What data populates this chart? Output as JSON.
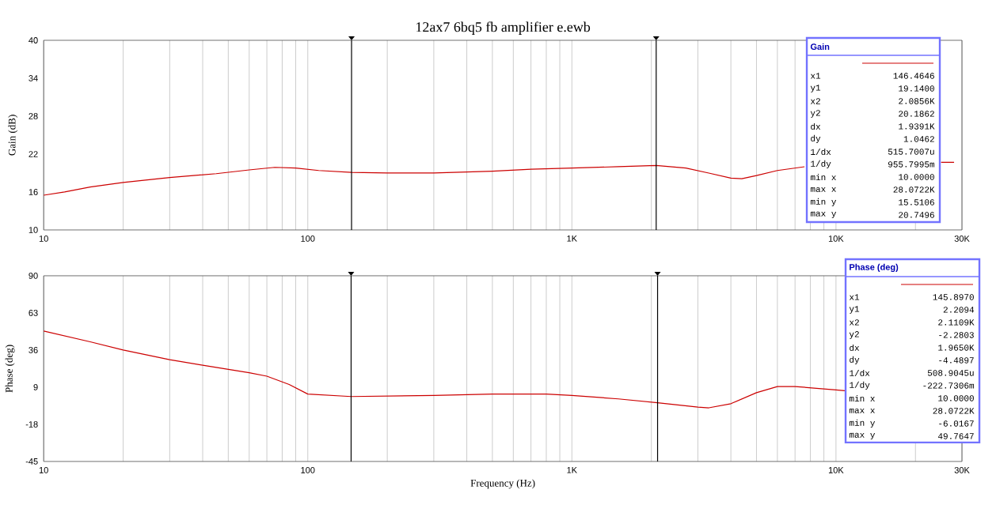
{
  "chart_data": [
    {
      "type": "line",
      "title": "12ax7 6bq5 fb amplifier e.ewb",
      "ylabel": "Gain (dB)",
      "log": "x",
      "grid": "x",
      "marker": "none",
      "xlim": [
        10,
        30000
      ],
      "xticks": [
        10,
        100,
        {
          "value": 1000,
          "label": "1K"
        },
        {
          "value": 10000,
          "label": "10K"
        },
        {
          "value": 30000,
          "label": "30K"
        }
      ],
      "ylim": [
        10,
        40
      ],
      "yticks": [
        10,
        16,
        22,
        28,
        34,
        40
      ],
      "x": [
        10,
        12,
        15,
        20,
        30,
        45,
        60,
        75,
        90,
        110,
        146.4646,
        200,
        300,
        500,
        700,
        1000,
        1500,
        2085.6,
        2700,
        3300,
        4000,
        4400,
        5000,
        6000,
        7600,
        9000,
        25000,
        28000
      ],
      "series": [
        {
          "color": "#cc0000",
          "values": [
            15.5,
            16.0,
            16.8,
            17.5,
            18.3,
            18.9,
            19.5,
            19.9,
            19.8,
            19.4,
            19.1,
            19.0,
            19.0,
            19.3,
            19.6,
            19.8,
            20.0,
            20.2,
            19.8,
            19.0,
            18.2,
            18.1,
            18.6,
            19.4,
            20.0,
            null,
            20.7,
            20.7
          ]
        }
      ],
      "ref_lines": [
        {
          "axis": "x",
          "value": 146.4646,
          "color": "#000000"
        },
        {
          "axis": "x",
          "value": 2085.6,
          "color": "#000000"
        }
      ],
      "annotations": [
        "Gain",
        "x1",
        "146.4646",
        "y1",
        "19.1400",
        "x2",
        "2.0856K",
        "y2",
        "20.1862",
        "dx",
        "1.9391K",
        "dy",
        "1.0462",
        "1/dx",
        "515.7007u",
        "1/dy",
        "955.7995m",
        "min x",
        "10.0000",
        "max x",
        "28.0722K",
        "min y",
        "15.5106",
        "max y",
        "20.7496"
      ]
    },
    {
      "type": "line",
      "xlabel": "Frequency (Hz)",
      "ylabel": "Phase (deg)",
      "log": "x",
      "grid": "x",
      "marker": "none",
      "xlim": [
        10,
        30000
      ],
      "xticks": [
        10,
        100,
        {
          "value": 1000,
          "label": "1K"
        },
        {
          "value": 10000,
          "label": "10K"
        },
        {
          "value": 30000,
          "label": "30K"
        }
      ],
      "ylim": [
        -45,
        90
      ],
      "yticks": [
        -45,
        -18,
        9,
        36,
        63,
        90
      ],
      "x": [
        10,
        15,
        20,
        30,
        40,
        60,
        70,
        85,
        100,
        145.897,
        300,
        500,
        800,
        1000,
        1500,
        2110.9,
        3000,
        3300,
        4000,
        5000,
        6000,
        7000,
        10000,
        10800
      ],
      "series": [
        {
          "color": "#cc0000",
          "values": [
            49.8,
            42,
            36,
            29,
            25,
            19.5,
            17,
            11,
            4,
            2.2,
            3,
            4,
            4,
            3,
            0.5,
            -2.3,
            -5.5,
            -6.0,
            -3,
            5,
            9.5,
            9.5,
            7,
            6.5
          ]
        }
      ],
      "ref_lines": [
        {
          "axis": "x",
          "value": 145.897,
          "color": "#000000"
        },
        {
          "axis": "x",
          "value": 2110.9,
          "color": "#000000"
        }
      ],
      "annotations": [
        "Phase (deg)",
        "x1",
        "145.8970",
        "y1",
        "2.2094",
        "x2",
        "2.1109K",
        "y2",
        "-2.2803",
        "dx",
        "1.9650K",
        "dy",
        "-4.4897",
        "1/dx",
        "508.9045u",
        "1/dy",
        "-222.7306m",
        "min x",
        "10.0000",
        "max x",
        "28.0722K",
        "min y",
        "-6.0167",
        "max y",
        "49.7647"
      ]
    }
  ]
}
